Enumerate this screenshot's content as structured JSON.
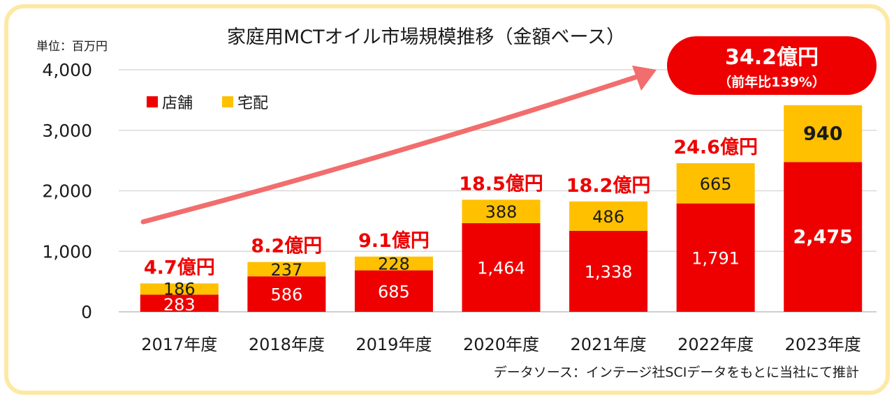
{
  "chart_data": {
    "type": "bar",
    "stacked": true,
    "title": "家庭用MCTオイル市場規模推移（金額ベース）",
    "unit_label": "単位：百万円",
    "categories": [
      "2017年度",
      "2018年度",
      "2019年度",
      "2020年度",
      "2021年度",
      "2022年度",
      "2023年度"
    ],
    "series": [
      {
        "name": "店舗",
        "color": "#ee0000",
        "values": [
          283,
          586,
          685,
          1464,
          1338,
          1791,
          2475
        ],
        "labels": [
          "283",
          "586",
          "685",
          "1,464",
          "1,338",
          "1,791",
          "2,475"
        ]
      },
      {
        "name": "宅配",
        "color": "#ffc000",
        "values": [
          186,
          237,
          228,
          388,
          486,
          665,
          940
        ],
        "labels": [
          "186",
          "237",
          "228",
          "388",
          "486",
          "665",
          "940"
        ]
      }
    ],
    "totals_labels": [
      "4.7億円",
      "8.2億円",
      "9.1億円",
      "18.5億円",
      "18.2億円",
      "24.6億円"
    ],
    "ylim": [
      0,
      4000
    ],
    "yticks": [
      0,
      1000,
      2000,
      3000,
      4000
    ],
    "ytick_labels": [
      "0",
      "1,000",
      "2,000",
      "3,000",
      "4,000"
    ],
    "grid": true,
    "legend": "top-left",
    "callout": {
      "main": "34.2億円",
      "sub": "（前年比139%）"
    },
    "source": "データソース：インテージ社SCIデータをもとに当社にて推計"
  },
  "colors": {
    "frame": "#fde9a4",
    "accent": "#ee0000",
    "delivery": "#ffc000",
    "arrow": "#f26d6d"
  }
}
